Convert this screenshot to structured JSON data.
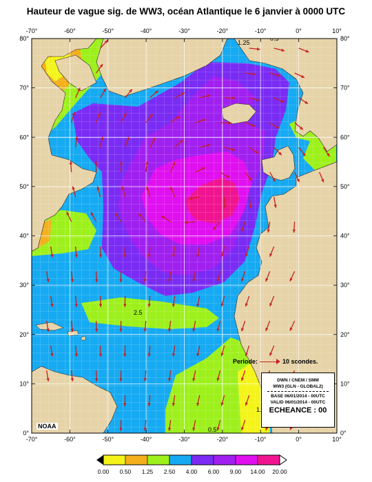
{
  "title": "Hauteur de vague sig. de WW3, océan Atlantique le 6 janvier à 0000 UTC",
  "longitude_labels": [
    "-70°",
    "-60°",
    "-50°",
    "-40°",
    "-30°",
    "-20°",
    "-10°",
    "0°",
    "10°"
  ],
  "latitude_labels": [
    "80°",
    "70°",
    "60°",
    "50°",
    "40°",
    "30°",
    "20°",
    "10°",
    "0°"
  ],
  "contour_labels": [
    "0.5",
    "1.25",
    "2.5"
  ],
  "credit": "NOAA",
  "period_legend": "Periode:",
  "period_value": "10 scondes.",
  "info": {
    "line1": "DWN / CNEM / SMM",
    "line2": "WW3 (GLN - GLOBAL2)",
    "line3": "BASE 06/01/2014 - 00UTC",
    "line4": "VALID 06/01/2014 - 00UTC",
    "line5": "ECHEANCE : 00"
  },
  "legend": {
    "labels": [
      "0.00",
      "0.50",
      "1.25",
      "2.50",
      "4.00",
      "6.00",
      "9.00",
      "14.00",
      "20.00"
    ],
    "colors": [
      "#f4f41a",
      "#f4b01c",
      "#9ef01c",
      "#16aaf2",
      "#7a2cf4",
      "#a020f0",
      "#e010f0",
      "#f01490"
    ]
  },
  "colors": {
    "land": "#e6d3a8",
    "arrow": "#c62020"
  }
}
